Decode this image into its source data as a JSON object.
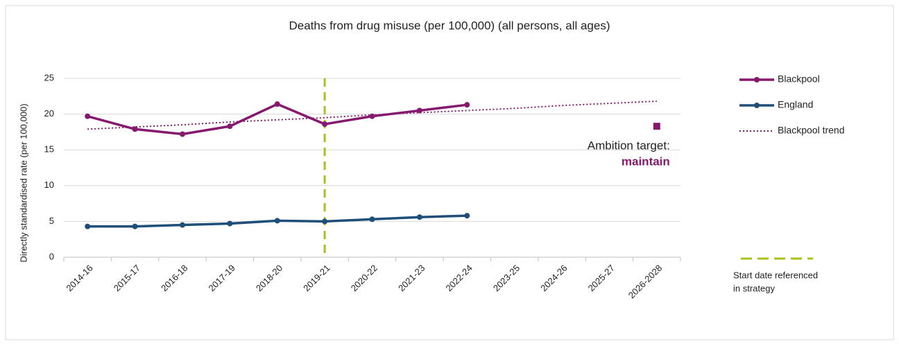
{
  "chart_data": {
    "type": "line",
    "title": "Deaths from drug misuse (per 100,000) (all persons, all ages)",
    "y_label": "Directly standardised rate (per 100,000)",
    "categories": [
      "2014-16",
      "2015-17",
      "2016-18",
      "2017-19",
      "2018-20",
      "2019-21",
      "2020-22",
      "2021-23",
      "2022-24",
      "2023-25",
      "2024-26",
      "2025-27",
      "2026-2028"
    ],
    "series": [
      {
        "name": "Blackpool",
        "color": "#86196e",
        "style": "solid",
        "markers": true,
        "values": [
          19.7,
          17.9,
          17.2,
          18.3,
          21.4,
          18.6,
          19.7,
          20.5,
          21.3,
          null,
          null,
          null,
          null
        ]
      },
      {
        "name": "England",
        "color": "#1f4e79",
        "style": "solid",
        "markers": true,
        "values": [
          4.3,
          4.3,
          4.5,
          4.7,
          5.1,
          5.0,
          5.3,
          5.6,
          5.8,
          null,
          null,
          null,
          null
        ]
      },
      {
        "name": "Blackpool trend",
        "color": "#86196e",
        "style": "dotted",
        "markers": false,
        "values": [
          17.9,
          18.2,
          18.5,
          18.9,
          19.2,
          19.5,
          19.9,
          20.2,
          20.5,
          20.8,
          21.2,
          21.5,
          21.8
        ]
      }
    ],
    "target": {
      "label": "Ambition target:",
      "text": "maintain",
      "value": 18.3,
      "category": "2026-2028",
      "color": "#86196e"
    },
    "reference_line": {
      "category": "2019-21",
      "color": "#a3c517",
      "label": [
        "Start date referenced",
        "in strategy"
      ]
    },
    "ylim": [
      0,
      25
    ],
    "yticks": [
      0,
      5,
      10,
      15,
      20,
      25
    ],
    "grid": true,
    "legend": "right"
  }
}
